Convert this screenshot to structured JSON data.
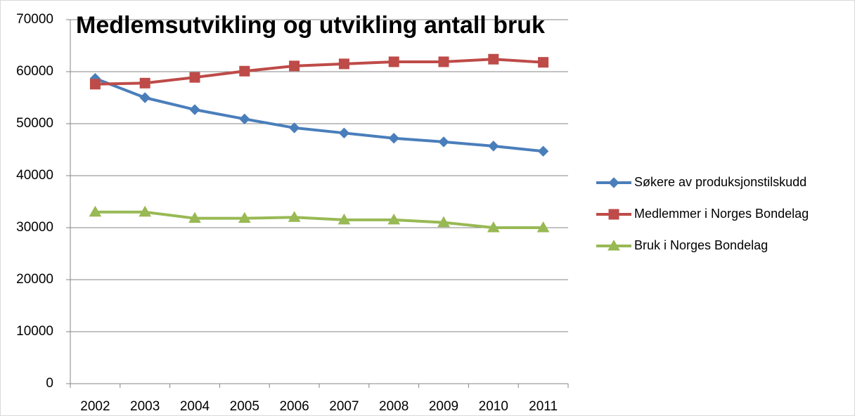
{
  "chart_data": {
    "type": "line",
    "title": "Medlemsutvikling og utvikling antall bruk",
    "categories": [
      "2002",
      "2003",
      "2004",
      "2005",
      "2006",
      "2007",
      "2008",
      "2009",
      "2010",
      "2011"
    ],
    "series": [
      {
        "name": "Søkere av produksjonstilskudd",
        "color": "#4a7ebb",
        "marker": "diamond",
        "values": [
          58700,
          55000,
          52700,
          50900,
          49200,
          48200,
          47200,
          46500,
          45700,
          44700
        ]
      },
      {
        "name": "Medlemmer i Norges Bondelag",
        "color": "#be4b48",
        "marker": "square",
        "values": [
          57600,
          57800,
          58900,
          60100,
          61100,
          61500,
          61900,
          61900,
          62400,
          61800
        ]
      },
      {
        "name": "Bruk i Norges Bondelag",
        "color": "#98b954",
        "marker": "triangle",
        "values": [
          33000,
          33000,
          31800,
          31800,
          32000,
          31500,
          31500,
          31000,
          30000,
          30000
        ]
      }
    ],
    "ylim": [
      0,
      70000
    ],
    "yticks": [
      0,
      10000,
      20000,
      30000,
      40000,
      50000,
      60000,
      70000
    ],
    "grid": true,
    "legend": "right"
  }
}
